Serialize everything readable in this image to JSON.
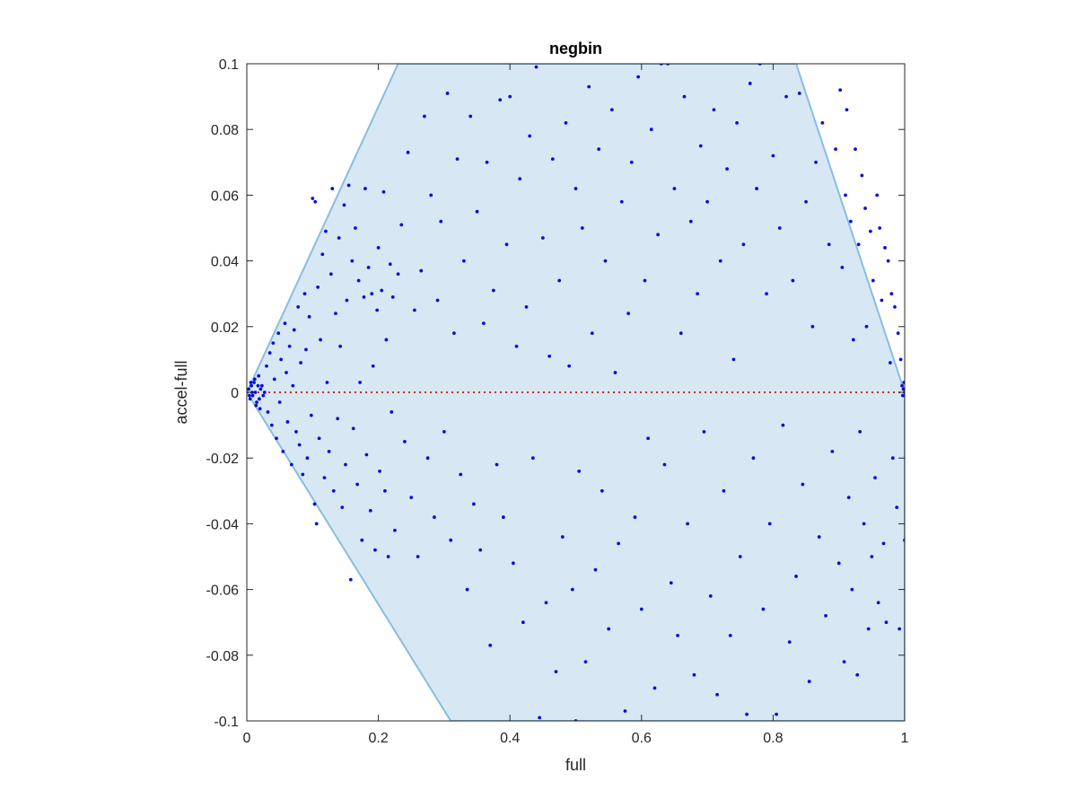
{
  "chart_data": {
    "type": "scatter",
    "title": "negbin",
    "xlabel": "full",
    "ylabel": "accel-full",
    "xlim": [
      0,
      1
    ],
    "ylim": [
      -0.1,
      0.1
    ],
    "xticks": [
      "0",
      "0.2",
      "0.4",
      "0.6",
      "0.8",
      "1"
    ],
    "yticks": [
      "-0.1",
      "-0.08",
      "-0.06",
      "-0.04",
      "-0.02",
      "0",
      "0.02",
      "0.04",
      "0.06",
      "0.08",
      "0.1"
    ],
    "grid": false,
    "region": {
      "label": "",
      "fill_color": "#d7e8f4",
      "edge_color": "#88bde0",
      "polygon": [
        [
          0,
          0
        ],
        [
          0.23,
          0.1
        ],
        [
          0.835,
          0.1
        ],
        [
          1.0,
          0.0
        ],
        [
          1.0,
          -0.1
        ],
        [
          0.31,
          -0.1
        ],
        [
          0,
          0
        ]
      ]
    },
    "reference_line": {
      "y": 0,
      "style": "dotted",
      "color": "#e0201a"
    },
    "series": [
      {
        "marker_color": "#0a10d8",
        "points": [
          [
            0.003,
            0.001
          ],
          [
            0.005,
            -0.002
          ],
          [
            0.007,
            0.002
          ],
          [
            0.009,
            -0.001
          ],
          [
            0.011,
            0.003
          ],
          [
            0.013,
            0.0
          ],
          [
            0.015,
            -0.003
          ],
          [
            0.017,
            0.002
          ],
          [
            0.019,
            -0.002
          ],
          [
            0.021,
            0.001
          ],
          [
            0.012,
            0.004
          ],
          [
            0.014,
            -0.004
          ],
          [
            0.023,
            0.002
          ],
          [
            0.025,
            -0.001
          ],
          [
            0.008,
            0.0
          ],
          [
            0.004,
            -0.001
          ],
          [
            0.006,
            0.003
          ],
          [
            0.018,
            0.005
          ],
          [
            0.02,
            -0.005
          ],
          [
            0.027,
            0.0
          ],
          [
            0.03,
            0.008
          ],
          [
            0.032,
            -0.006
          ],
          [
            0.035,
            0.012
          ],
          [
            0.038,
            -0.01
          ],
          [
            0.04,
            0.015
          ],
          [
            0.042,
            0.004
          ],
          [
            0.045,
            -0.014
          ],
          [
            0.048,
            0.018
          ],
          [
            0.05,
            -0.003
          ],
          [
            0.052,
            0.01
          ],
          [
            0.055,
            -0.018
          ],
          [
            0.058,
            0.021
          ],
          [
            0.06,
            0.006
          ],
          [
            0.062,
            -0.009
          ],
          [
            0.065,
            0.014
          ],
          [
            0.068,
            -0.022
          ],
          [
            0.07,
            0.002
          ],
          [
            0.072,
            0.019
          ],
          [
            0.075,
            -0.012
          ],
          [
            0.078,
            0.026
          ],
          [
            0.08,
            -0.016
          ],
          [
            0.082,
            0.009
          ],
          [
            0.085,
            -0.025
          ],
          [
            0.088,
            0.03
          ],
          [
            0.09,
            0.013
          ],
          [
            0.092,
            -0.02
          ],
          [
            0.095,
            0.023
          ],
          [
            0.098,
            -0.007
          ],
          [
            0.1,
            0.059
          ],
          [
            0.104,
            0.058
          ],
          [
            0.103,
            -0.034
          ],
          [
            0.106,
            -0.04
          ],
          [
            0.108,
            0.032
          ],
          [
            0.11,
            -0.014
          ],
          [
            0.112,
            0.016
          ],
          [
            0.115,
            0.042
          ],
          [
            0.118,
            -0.026
          ],
          [
            0.12,
            0.049
          ],
          [
            0.122,
            0.003
          ],
          [
            0.125,
            -0.018
          ],
          [
            0.128,
            0.036
          ],
          [
            0.13,
            0.062
          ],
          [
            0.132,
            -0.03
          ],
          [
            0.135,
            0.024
          ],
          [
            0.138,
            -0.008
          ],
          [
            0.14,
            0.047
          ],
          [
            0.142,
            0.014
          ],
          [
            0.145,
            -0.035
          ],
          [
            0.148,
            0.057
          ],
          [
            0.15,
            -0.022
          ],
          [
            0.152,
            0.028
          ],
          [
            0.155,
            0.063
          ],
          [
            0.158,
            -0.057
          ],
          [
            0.16,
            0.04
          ],
          [
            0.162,
            -0.011
          ],
          [
            0.165,
            0.05
          ],
          [
            0.168,
            -0.028
          ],
          [
            0.17,
            0.034
          ],
          [
            0.172,
            0.003
          ],
          [
            0.175,
            -0.045
          ],
          [
            0.178,
            0.029
          ],
          [
            0.18,
            0.062
          ],
          [
            0.182,
            -0.019
          ],
          [
            0.185,
            0.038
          ],
          [
            0.188,
            -0.036
          ],
          [
            0.19,
            0.03
          ],
          [
            0.192,
            0.008
          ],
          [
            0.195,
            -0.048
          ],
          [
            0.198,
            0.025
          ],
          [
            0.2,
            0.044
          ],
          [
            0.202,
            -0.024
          ],
          [
            0.205,
            0.031
          ],
          [
            0.208,
            0.061
          ],
          [
            0.21,
            -0.03
          ],
          [
            0.212,
            0.016
          ],
          [
            0.215,
            -0.05
          ],
          [
            0.218,
            0.039
          ],
          [
            0.22,
            -0.006
          ],
          [
            0.222,
            0.029
          ],
          [
            0.225,
            -0.042
          ],
          [
            0.23,
            0.036
          ],
          [
            0.235,
            0.051
          ],
          [
            0.24,
            -0.015
          ],
          [
            0.245,
            0.073
          ],
          [
            0.25,
            -0.032
          ],
          [
            0.255,
            0.025
          ],
          [
            0.26,
            -0.05
          ],
          [
            0.265,
            0.037
          ],
          [
            0.27,
            0.084
          ],
          [
            0.275,
            -0.02
          ],
          [
            0.28,
            0.06
          ],
          [
            0.285,
            -0.038
          ],
          [
            0.29,
            0.028
          ],
          [
            0.295,
            0.052
          ],
          [
            0.3,
            -0.012
          ],
          [
            0.305,
            0.091
          ],
          [
            0.31,
            -0.045
          ],
          [
            0.315,
            0.018
          ],
          [
            0.32,
            0.071
          ],
          [
            0.325,
            -0.025
          ],
          [
            0.33,
            0.04
          ],
          [
            0.335,
            -0.06
          ],
          [
            0.34,
            0.084
          ],
          [
            0.345,
            -0.034
          ],
          [
            0.35,
            0.055
          ],
          [
            0.355,
            -0.048
          ],
          [
            0.36,
            0.021
          ],
          [
            0.365,
            0.07
          ],
          [
            0.37,
            -0.077
          ],
          [
            0.375,
            0.031
          ],
          [
            0.38,
            -0.022
          ],
          [
            0.385,
            0.089
          ],
          [
            0.39,
            -0.038
          ],
          [
            0.395,
            0.045
          ],
          [
            0.4,
            0.09
          ],
          [
            0.405,
            -0.052
          ],
          [
            0.41,
            0.014
          ],
          [
            0.415,
            0.065
          ],
          [
            0.42,
            -0.07
          ],
          [
            0.425,
            0.026
          ],
          [
            0.43,
            0.078
          ],
          [
            0.435,
            -0.02
          ],
          [
            0.44,
            0.099
          ],
          [
            0.445,
            -0.099
          ],
          [
            0.45,
            0.047
          ],
          [
            0.455,
            -0.064
          ],
          [
            0.46,
            0.011
          ],
          [
            0.465,
            0.071
          ],
          [
            0.47,
            -0.085
          ],
          [
            0.475,
            0.034
          ],
          [
            0.48,
            -0.044
          ],
          [
            0.485,
            0.082
          ],
          [
            0.49,
            0.008
          ],
          [
            0.495,
            -0.06
          ],
          [
            0.5,
            0.062
          ],
          [
            0.5,
            -0.1
          ],
          [
            0.505,
            -0.024
          ],
          [
            0.51,
            0.05
          ],
          [
            0.515,
            -0.082
          ],
          [
            0.52,
            0.093
          ],
          [
            0.525,
            0.018
          ],
          [
            0.53,
            -0.054
          ],
          [
            0.535,
            0.074
          ],
          [
            0.54,
            -0.03
          ],
          [
            0.545,
            0.04
          ],
          [
            0.55,
            -0.072
          ],
          [
            0.555,
            0.086
          ],
          [
            0.56,
            0.006
          ],
          [
            0.565,
            -0.046
          ],
          [
            0.57,
            0.058
          ],
          [
            0.575,
            -0.097
          ],
          [
            0.58,
            0.024
          ],
          [
            0.585,
            0.07
          ],
          [
            0.59,
            -0.038
          ],
          [
            0.595,
            0.096
          ],
          [
            0.6,
            -0.066
          ],
          [
            0.605,
            0.034
          ],
          [
            0.61,
            -0.014
          ],
          [
            0.615,
            0.08
          ],
          [
            0.62,
            -0.09
          ],
          [
            0.625,
            0.048
          ],
          [
            0.63,
            0.1
          ],
          [
            0.635,
            -0.022
          ],
          [
            0.64,
            0.1
          ],
          [
            0.645,
            -0.058
          ],
          [
            0.65,
            0.062
          ],
          [
            0.655,
            -0.074
          ],
          [
            0.66,
            0.018
          ],
          [
            0.665,
            0.09
          ],
          [
            0.67,
            -0.04
          ],
          [
            0.675,
            0.052
          ],
          [
            0.68,
            -0.086
          ],
          [
            0.685,
            0.03
          ],
          [
            0.69,
            0.075
          ],
          [
            0.695,
            -0.012
          ],
          [
            0.7,
            0.058
          ],
          [
            0.705,
            -0.062
          ],
          [
            0.71,
            0.086
          ],
          [
            0.715,
            -0.092
          ],
          [
            0.72,
            0.04
          ],
          [
            0.725,
            -0.03
          ],
          [
            0.73,
            0.068
          ],
          [
            0.735,
            -0.074
          ],
          [
            0.74,
            0.01
          ],
          [
            0.745,
            0.082
          ],
          [
            0.75,
            -0.05
          ],
          [
            0.755,
            0.045
          ],
          [
            0.76,
            -0.098
          ],
          [
            0.765,
            0.094
          ],
          [
            0.77,
            -0.02
          ],
          [
            0.775,
            0.062
          ],
          [
            0.78,
            0.1
          ],
          [
            0.785,
            -0.066
          ],
          [
            0.79,
            0.03
          ],
          [
            0.795,
            -0.04
          ],
          [
            0.8,
            0.072
          ],
          [
            0.805,
            -0.098
          ],
          [
            0.81,
            0.05
          ],
          [
            0.815,
            -0.01
          ],
          [
            0.82,
            0.09
          ],
          [
            0.825,
            -0.076
          ],
          [
            0.83,
            0.034
          ],
          [
            0.835,
            -0.056
          ],
          [
            0.84,
            0.091
          ],
          [
            0.845,
            -0.028
          ],
          [
            0.85,
            0.058
          ],
          [
            0.855,
            -0.088
          ],
          [
            0.86,
            0.02
          ],
          [
            0.865,
            0.07
          ],
          [
            0.87,
            -0.044
          ],
          [
            0.875,
            0.082
          ],
          [
            0.88,
            -0.068
          ],
          [
            0.885,
            0.045
          ],
          [
            0.89,
            -0.018
          ],
          [
            0.895,
            0.074
          ],
          [
            0.9,
            -0.052
          ],
          [
            0.902,
            0.092
          ],
          [
            0.905,
            0.038
          ],
          [
            0.908,
            -0.082
          ],
          [
            0.91,
            0.06
          ],
          [
            0.912,
            0.086
          ],
          [
            0.915,
            -0.032
          ],
          [
            0.918,
            0.052
          ],
          [
            0.92,
            -0.06
          ],
          [
            0.922,
            0.016
          ],
          [
            0.925,
            0.074
          ],
          [
            0.928,
            -0.086
          ],
          [
            0.93,
            0.045
          ],
          [
            0.932,
            -0.012
          ],
          [
            0.935,
            0.066
          ],
          [
            0.938,
            -0.04
          ],
          [
            0.94,
            0.056
          ],
          [
            0.942,
            0.02
          ],
          [
            0.945,
            -0.072
          ],
          [
            0.948,
            0.049
          ],
          [
            0.95,
            -0.05
          ],
          [
            0.952,
            0.034
          ],
          [
            0.955,
            -0.026
          ],
          [
            0.958,
            0.06
          ],
          [
            0.96,
            -0.064
          ],
          [
            0.962,
            0.05
          ],
          [
            0.965,
            0.028
          ],
          [
            0.968,
            -0.046
          ],
          [
            0.97,
            0.044
          ],
          [
            0.972,
            -0.07
          ],
          [
            0.975,
            0.04
          ],
          [
            0.978,
            0.009
          ],
          [
            0.98,
            0.03
          ],
          [
            0.982,
            -0.02
          ],
          [
            0.985,
            0.026
          ],
          [
            0.988,
            -0.035
          ],
          [
            0.99,
            0.018
          ],
          [
            0.992,
            -0.072
          ],
          [
            0.994,
            0.01
          ],
          [
            0.996,
            0.002
          ],
          [
            0.998,
            0.001
          ],
          [
            1.0,
            0.0
          ],
          [
            1.0,
            -0.045
          ],
          [
            0.999,
            0.003
          ],
          [
            0.997,
            -0.001
          ]
        ]
      }
    ]
  }
}
